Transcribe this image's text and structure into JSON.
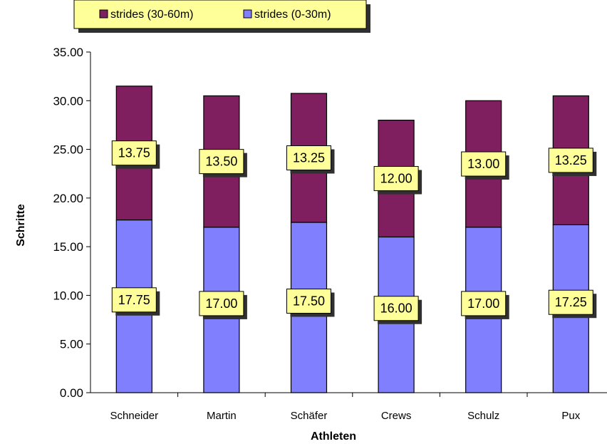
{
  "chart_data": {
    "type": "bar",
    "stacked": true,
    "categories": [
      "Schneider",
      "Martin",
      "Schäfer",
      "Crews",
      "Schulz",
      "Pux"
    ],
    "series": [
      {
        "name": "strides (0-30m)",
        "values": [
          17.75,
          17.0,
          17.5,
          16.0,
          17.0,
          17.25
        ],
        "color": "#8080ff",
        "labels": [
          "17.75",
          "17.00",
          "17.50",
          "16.00",
          "17.00",
          "17.25"
        ]
      },
      {
        "name": "strides (30-60m)",
        "values": [
          13.75,
          13.5,
          13.25,
          12.0,
          13.0,
          13.25
        ],
        "color": "#7f1f5f",
        "labels": [
          "13.75",
          "13.50",
          "13.25",
          "12.00",
          "13.00",
          "13.25"
        ]
      }
    ],
    "legend": [
      {
        "name": "strides (30-60m)",
        "color": "#7f1f5f"
      },
      {
        "name": "strides (0-30m)",
        "color": "#8080ff"
      }
    ],
    "legend_position": "top-left",
    "xlabel": "Athleten",
    "ylabel": "Schritte",
    "ylim": [
      0,
      35
    ],
    "yticks": [
      "0.00",
      "5.00",
      "10.00",
      "15.00",
      "20.00",
      "25.00",
      "30.00",
      "35.00"
    ],
    "grid": false,
    "data_label_bg": "#ffff99"
  }
}
